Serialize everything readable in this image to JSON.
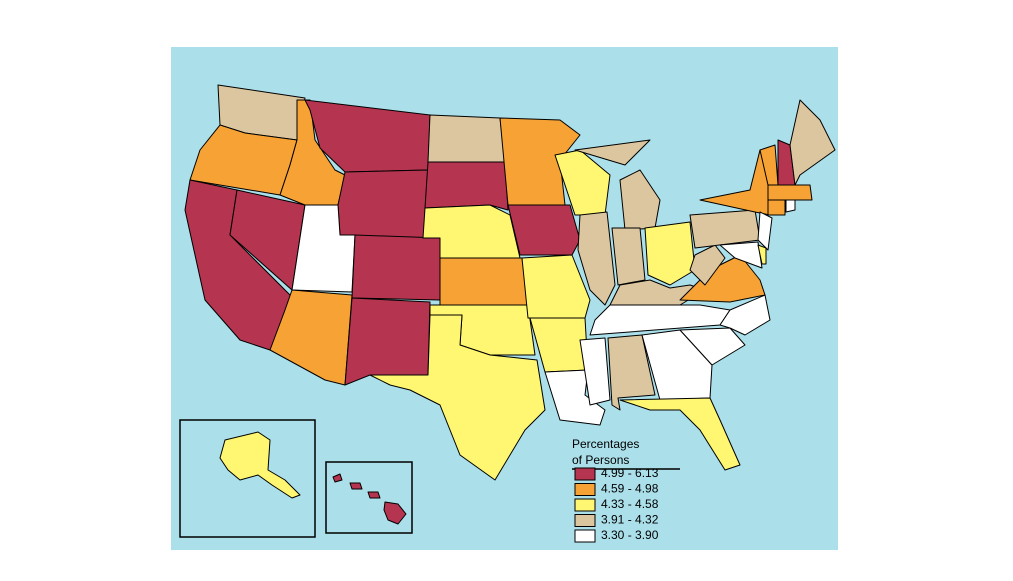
{
  "legend": {
    "title_lines": [
      "Percentages",
      "of Persons"
    ],
    "items": [
      {
        "label": "4.99 - 6.13",
        "color": "#b5344f"
      },
      {
        "label": "4.59 - 4.98",
        "color": "#f7a234"
      },
      {
        "label": "4.33 - 4.58",
        "color": "#fff671"
      },
      {
        "label": "3.91 - 4.32",
        "color": "#dcc6a0"
      },
      {
        "label": "3.30 - 3.90",
        "color": "#ffffff"
      }
    ]
  }
}
